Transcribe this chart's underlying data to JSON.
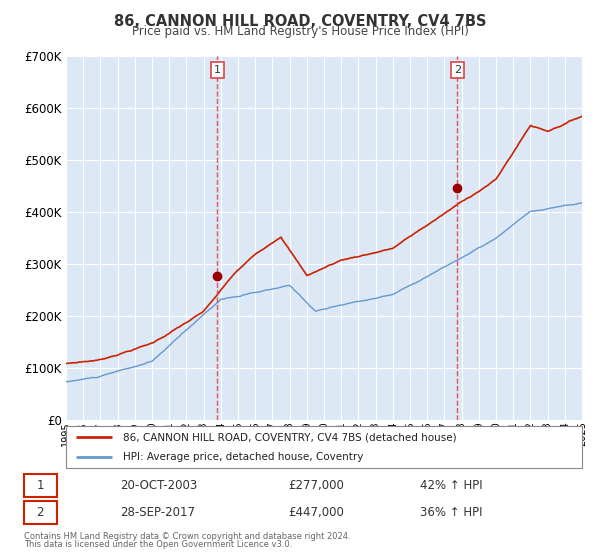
{
  "title": "86, CANNON HILL ROAD, COVENTRY, CV4 7BS",
  "subtitle": "Price paid vs. HM Land Registry's House Price Index (HPI)",
  "legend_entry1": "86, CANNON HILL ROAD, COVENTRY, CV4 7BS (detached house)",
  "legend_entry2": "HPI: Average price, detached house, Coventry",
  "sale1_date": "20-OCT-2003",
  "sale1_price": 277000,
  "sale1_label": "42% ↑ HPI",
  "sale1_year": 2003.8,
  "sale2_date": "28-SEP-2017",
  "sale2_price": 447000,
  "sale2_label": "36% ↑ HPI",
  "sale2_year": 2017.75,
  "footer1": "Contains HM Land Registry data © Crown copyright and database right 2024.",
  "footer2": "This data is licensed under the Open Government Licence v3.0.",
  "hpi_color": "#6699cc",
  "price_color": "#cc2200",
  "vline_color": "#dd4444",
  "bg_color": "#dce8f5",
  "plot_bg": "#ffffff",
  "grid_color": "#ffffff",
  "ylim": [
    0,
    700000
  ],
  "xlim_start": 1995,
  "xlim_end": 2025
}
